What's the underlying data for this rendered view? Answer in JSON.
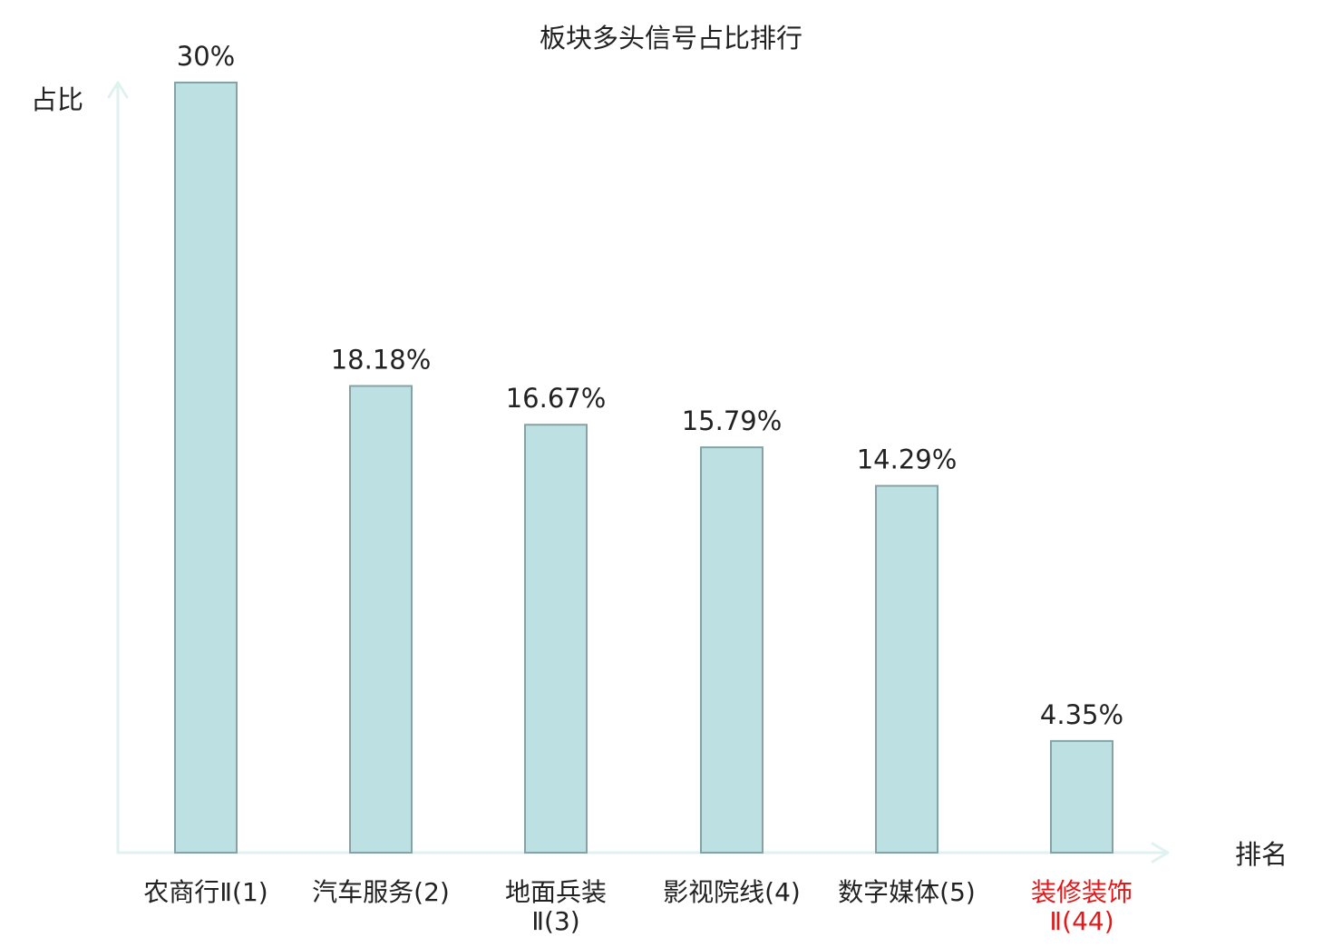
{
  "chart_data": {
    "type": "bar",
    "title": "板块多头信号占比排行",
    "ylabel": "占比",
    "xlabel": "排名",
    "categories": [
      {
        "lines": [
          "农商行Ⅱ(1)"
        ]
      },
      {
        "lines": [
          "汽车服务(2)"
        ]
      },
      {
        "lines": [
          "地面兵装",
          "Ⅱ(3)"
        ]
      },
      {
        "lines": [
          "影视院线(4)"
        ]
      },
      {
        "lines": [
          "数字媒体(5)"
        ]
      },
      {
        "lines": [
          "装修装饰",
          "Ⅱ(44)"
        ],
        "highlight": true
      }
    ],
    "values": [
      30,
      18.18,
      16.67,
      15.79,
      14.29,
      4.35
    ],
    "value_labels": [
      "30%",
      "18.18%",
      "16.67%",
      "15.79%",
      "14.29%",
      "4.35%"
    ],
    "ylim": [
      0,
      30
    ],
    "grid": false,
    "colors": {
      "bar_fill": "#bde0e2",
      "bar_stroke": "#85a3a6",
      "axis": "#dff2ef",
      "text": "#222222",
      "highlight_text": "#e0191b"
    }
  }
}
